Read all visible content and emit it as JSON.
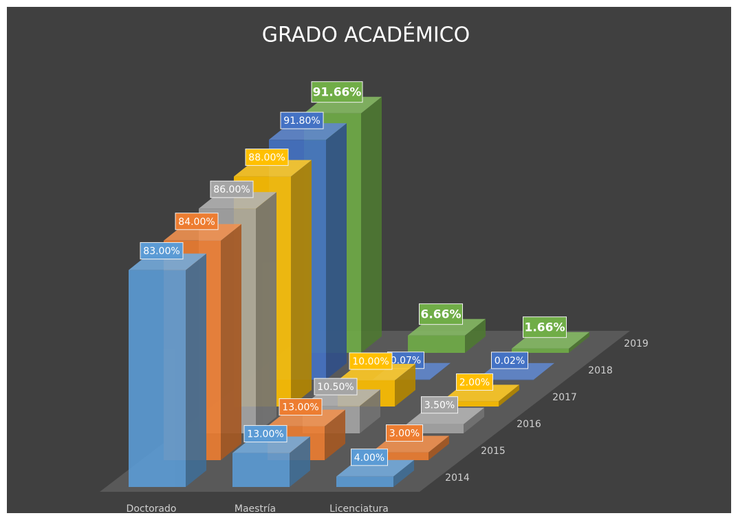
{
  "chart_data": {
    "type": "bar3d",
    "title": "GRADO ACADÉMICO",
    "categories": [
      "Doctorado",
      "Maestría",
      "Licenciatura"
    ],
    "series": [
      {
        "name": "2014",
        "color": "#5b9bd5",
        "values": [
          83,
          13,
          4
        ],
        "value_labels": [
          "83.00%",
          "13.00%",
          "4.00%"
        ]
      },
      {
        "name": "2015",
        "color": "#ed7d31",
        "values": [
          84,
          13,
          3
        ],
        "value_labels": [
          "84.00%",
          "13.00%",
          "3.00%"
        ]
      },
      {
        "name": "2016",
        "color": "#a5a5a5",
        "values": [
          86,
          10.5,
          3.5
        ],
        "value_labels": [
          "86.00%",
          "10.50%",
          "3.50%"
        ]
      },
      {
        "name": "2017",
        "color": "#ffc000",
        "values": [
          88,
          10,
          2
        ],
        "value_labels": [
          "88.00%",
          "10.00%",
          "2.00%"
        ]
      },
      {
        "name": "2018",
        "color": "#4472c4",
        "values": [
          91.8,
          0.07,
          0.02
        ],
        "value_labels": [
          "91.80%",
          "0.07%",
          "0.02%"
        ]
      },
      {
        "name": "2019",
        "color": "#70ad47",
        "values": [
          91.66,
          6.66,
          1.66
        ],
        "value_labels": [
          "91.66%",
          "6.66%",
          "1.66%"
        ]
      }
    ]
  }
}
